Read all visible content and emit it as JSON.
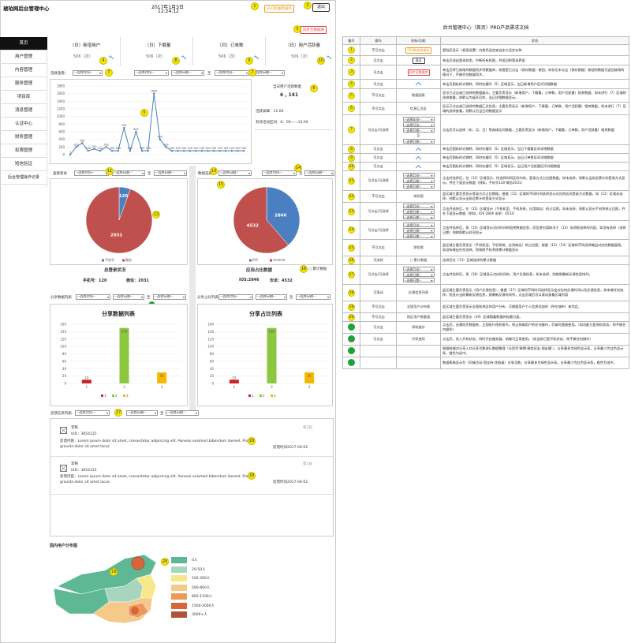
{
  "header": {
    "title": "琥珀网后台管理中心",
    "date": "2017年1月3日",
    "time": "12:24:12",
    "sso_label": "SSO和维修服务",
    "exit_label": "退出",
    "sync_label": "同步至数据库"
  },
  "sidebar": {
    "items": [
      "首页",
      "用户管理",
      "内容管理",
      "服务管理",
      "项目库",
      "消息管理",
      "认证中心",
      "财务管理",
      "权限管理",
      "短信验证",
      "后台管理操作记录"
    ]
  },
  "stats": [
    {
      "title": "（日）新增用户",
      "value": "506（次）"
    },
    {
      "title": "（日）下载量",
      "value": "506（次）"
    },
    {
      "title": "（日）订单数",
      "value": "506（次）"
    },
    {
      "title": "（日）用户活跃量",
      "value": "506（次）"
    }
  ],
  "filters": {
    "select_label": "选择查看：",
    "year": "--选择年份--",
    "month": "--选择月份--",
    "date": "--选择日期--",
    "to": "至"
  },
  "active_info": {
    "today_label": "当日用户活跃数量",
    "today_value": "6 , 141",
    "peak_label": "活跃高峰：11:00",
    "range_label": "有效活动区间：6：00——15:00"
  },
  "line_chart": {
    "ylim": [
      0,
      1800
    ],
    "yticks": [
      0,
      200,
      400,
      600,
      800,
      1000,
      1200,
      1400,
      1600,
      1800
    ],
    "values": [
      1,
      200,
      300,
      100,
      150,
      100,
      200,
      100,
      100,
      700,
      100,
      600,
      100,
      100,
      1600,
      400,
      200,
      100,
      100,
      100,
      100,
      100,
      100,
      100,
      100,
      100,
      100,
      100,
      100,
      100
    ]
  },
  "pie1": {
    "filter_label": "查看登录",
    "title": "总登录状况",
    "values": [
      120,
      2031
    ],
    "legend": [
      "手机号",
      "微信"
    ],
    "colors": [
      "#4a7fc1",
      "#c0504d"
    ],
    "caption_a": "手机号：120",
    "caption_b": "微信：2031"
  },
  "pie2": {
    "filter_label": "数据选取",
    "title": "应用占比数据",
    "values": [
      2846,
      4532
    ],
    "legend": [
      "IOS",
      "Android"
    ],
    "colors": [
      "#4a7fc1",
      "#c0504d"
    ],
    "caption_a": "IOS:2846",
    "caption_b": "安卓：4532",
    "cumulative_label": "累计数据"
  },
  "bar1": {
    "filter_label": "分享数据列表",
    "title": "分享数据列表",
    "categories": [
      "1",
      "2",
      "3"
    ],
    "values": [
      10,
      150,
      30
    ],
    "colors": [
      "#cc2222",
      "#8dc63f",
      "#f5b800"
    ],
    "ylim": [
      0,
      160
    ],
    "yticks": [
      0,
      20,
      40,
      60,
      80,
      100,
      120,
      140,
      160
    ]
  },
  "bar2": {
    "filter_label": "分享占比列表",
    "title": "分享占比列表",
    "categories": [
      "1",
      "2",
      "3"
    ],
    "values": [
      10,
      150,
      30
    ],
    "colors": [
      "#cc2222",
      "#8dc63f",
      "#f5b800"
    ],
    "ylim": [
      0,
      160
    ],
    "yticks": [
      0,
      20,
      40,
      60,
      80,
      100,
      120,
      140,
      160
    ]
  },
  "feedback": {
    "filter_label": "反馈信息列表",
    "items": [
      {
        "name": "李铁",
        "uid": "UID：3654125",
        "content": "反馈内容：Lorem ipsum dolor sit amet, consectetur adipiscing elit. Aenean euismod bibendum laoreet. Proin gravida dolor sit amet lacus",
        "floor": "第2层",
        "time": "反馈时间2017-04-02"
      },
      {
        "name": "李铁",
        "uid": "UID：3654125",
        "content": "反馈内容：Lorem ipsum dolor sit amet, consectetur adipiscing elit. Aenean euismod bibendum laoreet. Proin gravida dolor sit amet lacus",
        "floor": "第1层",
        "time": "反馈时间2017-04-02"
      }
    ]
  },
  "map": {
    "title": "国内用户分布图",
    "legend": [
      {
        "label": "0人",
        "color": "#5fb894"
      },
      {
        "label": "20-50人",
        "color": "#a8d5bd"
      },
      {
        "label": "100-300人",
        "color": "#f7e98a"
      },
      {
        "label": "500-800人",
        "color": "#f4c98a"
      },
      {
        "label": "800-1100人",
        "color": "#ec9a5c"
      },
      {
        "label": "1500-2000人",
        "color": "#d8663a"
      },
      {
        "label": "3000+人",
        "color": "#b0533a"
      }
    ]
  },
  "doc": {
    "title": "后台管理中心（首页）PRD产品需求文档",
    "headers": [
      "编号",
      "操作",
      "图标/功能",
      "状态"
    ],
    "rows": [
      {
        "n": "1",
        "op": "不可点击",
        "fn": "SSO和维修服务",
        "desc": "登陆后显示（权限设置）内角色设定或自定义设定名称"
      },
      {
        "n": "2",
        "op": "可点击",
        "fn": "退出",
        "desc": "单击后退出登录状态，中断所有权限，并返回到登录界面"
      },
      {
        "n": "3",
        "op": "可点击",
        "fn": "同步至数据库",
        "desc": "单击后将已修改的数据同步到数据库，前提是已点击（保存数据）按钮，如存在未点击（保存数据）按钮的数据可返回修改的情况下，不做任何数据同步。"
      },
      {
        "n": "4",
        "op": "可点击",
        "fn": "^",
        "desc": "单击后图标样式倒转，同时在编号（5）区域显示，当日新增用户区间详细数据"
      },
      {
        "n": "5",
        "op": "不可点击",
        "fn": "数据图表",
        "desc": "显示已点击或已选择的数据展示，主要负责显示（新增用户，下载量，订单数，用户活跃量）相关数据，如未进行（7）区域的选择查看，则默认为展开后的，当日详细数据显示。"
      },
      {
        "n": "6",
        "op": "不可点击",
        "fn": "信息汇总区",
        "desc": "显示已点击或已选择的数据汇总信息，主要负责显示（新增用户，下载量，订单数，用户活跃量）相关数据，如未进行（7）区域的选择查看，则默认为当日的数据显示"
      },
      {
        "n": "7",
        "op": "可点击/可选择",
        "fn": "select4",
        "desc": "点击后可以选择（年，月，日）等具体区间数据，主要负责显示（新增用户，下载量，订单数，用户活跃量）相关数据"
      },
      {
        "n": "8",
        "op": "可点击",
        "fn": "^",
        "desc": "单击后图标样式倒转，同时在编号（5）区域显示，当日下载量区间详细数据"
      },
      {
        "n": "9",
        "op": "可点击",
        "fn": "^",
        "desc": "单击后图标样式倒转，同时在编号（5）区域显示，当日订单数区间详细数据"
      },
      {
        "n": "10",
        "op": "可点击",
        "fn": "^",
        "desc": "单击后图标样式倒转，同时在编号（5）区域显示，当日用户活跃量区间详细数据"
      },
      {
        "n": "11",
        "op": "可点击/可选择",
        "fn": "select3",
        "desc": "点击并选择后，在（12）区域显示，所选择时间区间内的，登录方式占比图数据，如未选择，则默认当前总累计的登录方式显示。并在下面显示数据（例如，手机号120 微信2031）"
      },
      {
        "n": "12",
        "op": "不可点击",
        "fn": "饼状图",
        "desc": "此区域主要负责显示登录方式占比数据，根据（11）区域的不同时间选择显示对应的区间登录方式数据，如（11）区域未选择，则默认显示当前总累计的登录方式显示"
      },
      {
        "n": "13",
        "op": "可点击/可选择",
        "fn": "select3",
        "desc": "点击并选择后，在（15）区域显示（手机机型，手机系统，应用商店）的占比图，如未选择，则默认显示手机系统占比图，并在下面显示数据（例如，IOS 2846 安卓：4532）"
      },
      {
        "n": "14",
        "op": "可点击/可选择",
        "fn": "select3",
        "desc": "点击并选择后，再（15）区域显示对应时间的相关数据信息，而信息内容取决于（13）选项框选择的内容，如没有选择（选择日期）则按照默认时间显示"
      },
      {
        "n": "15",
        "op": "不可点击",
        "fn": "饼状图",
        "desc": "此区域主要负责显示（手机机型，手机系统，应用商店）的占比图，根据（13）（14）区域的不同选择做出对应的数据展现。如没有做出任何选择，则按照手机系统累计数据显示"
      },
      {
        "n": "16",
        "op": "可选择",
        "fn": "○ 累计数据",
        "desc": "选择后在（13）区域选择的累计数据"
      },
      {
        "n": "17",
        "op": "可点击/可选择",
        "fn": "select3",
        "desc": "点击并选择后，再（18）区域显示对应时间的，用户反馈信息，如未选择，则按照最新反馈信息排列。"
      },
      {
        "n": "18",
        "op": "可滚动",
        "fn": "反馈信息列表",
        "desc": "此区域主要负责显示（用户反馈信息），根据（17）区域的不同时间选择显示出对应的反馈时间以及反馈信息，如未做任何选择，则显示当前最新反馈信息，按最新反馈时间列，点击区域后可以滚动查看区域内容"
      },
      {
        "n": "19",
        "op": "不可点击",
        "fn": "全国用户分布图",
        "desc": "此区域主要负责显示全国各地区的用户分布，可根据用户个人信息添加的（所在城市）来判定。"
      },
      {
        "n": "20",
        "op": "不可点击",
        "fn": "地区用户数量值",
        "desc": "此区域主要负责显示（19）区域随着数据的标题分类。"
      },
      {
        "n": "g1",
        "op": "可点击",
        "fn": "停机维护",
        "desc": "点击后，无需同步数据库，立即执行停机指令。停止前端用户的任何操作，后端可随意使用。（如功能已是停机状态，则不做任何操作）"
      },
      {
        "n": "g2",
        "op": "可点击",
        "fn": "开机使用",
        "desc": "点击后，进入开机状态，同时开启服务器。前端可正常使用。（如当前已是开机状态，则不做任何操作）"
      },
      {
        "n": "g3",
        "op": "",
        "fn": "",
        "desc": "根据前端对分享入口分享次数进行数据整理（分别为'微博-微信好友-朋友圈'），分享最多为绿色显示条，分享最少为红色显示条，橙色为适中。"
      },
      {
        "n": "g4",
        "op": "",
        "fn": "",
        "desc": "数据表格显示为（同城活动-团支持-花络桌）分享次数，分享最多为绿色显示条，分享最少为红色显示条，橙色为适中。"
      }
    ]
  }
}
